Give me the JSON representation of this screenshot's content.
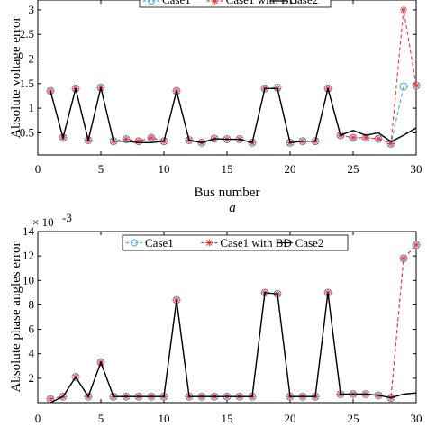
{
  "chart_data": [
    {
      "type": "line",
      "panel_label": "a",
      "title": "",
      "xlabel": "Bus number",
      "ylabel": "Absolute voltage error",
      "xlim": [
        0,
        30
      ],
      "ylim": [
        0.05,
        3.2
      ],
      "xticks": [
        "0",
        "5",
        "10",
        "15",
        "20",
        "25",
        "30"
      ],
      "yticks": [
        "0.5",
        "1",
        "1.5",
        "2",
        "2.5",
        "3"
      ],
      "legend": [
        "Case1",
        "Case1 with BD",
        "Case2"
      ],
      "legend_position": "top",
      "x": [
        1,
        2,
        3,
        4,
        5,
        6,
        7,
        8,
        9,
        10,
        11,
        12,
        13,
        14,
        15,
        16,
        17,
        18,
        19,
        20,
        21,
        22,
        23,
        24,
        25,
        26,
        27,
        28,
        29,
        30
      ],
      "series": [
        {
          "name": "Case1",
          "style": "dashed-circle",
          "color": "#4aa3df",
          "values": [
            1.35,
            0.4,
            1.4,
            0.35,
            1.42,
            0.33,
            0.37,
            0.33,
            0.4,
            0.33,
            1.35,
            0.35,
            0.3,
            0.38,
            0.37,
            0.37,
            0.3,
            1.4,
            1.42,
            0.3,
            0.33,
            0.33,
            1.4,
            0.45,
            0.4,
            0.4,
            0.38,
            0.28,
            1.44,
            1.46
          ]
        },
        {
          "name": "Case1 with BD",
          "style": "dashed-star",
          "color": "#e8383d",
          "values": [
            1.35,
            0.4,
            1.4,
            0.35,
            1.42,
            0.33,
            0.37,
            0.33,
            0.4,
            0.33,
            1.35,
            0.35,
            0.3,
            0.38,
            0.37,
            0.37,
            0.3,
            1.4,
            1.4,
            0.3,
            0.33,
            0.33,
            1.4,
            0.45,
            0.4,
            0.4,
            0.38,
            0.28,
            3.0,
            1.46
          ]
        },
        {
          "name": "Case2",
          "style": "solid",
          "color": "#000000",
          "values": [
            1.35,
            0.4,
            1.4,
            0.35,
            1.42,
            0.33,
            0.33,
            0.3,
            0.3,
            0.33,
            1.35,
            0.35,
            0.3,
            0.38,
            0.37,
            0.37,
            0.3,
            1.4,
            1.4,
            0.3,
            0.33,
            0.33,
            1.4,
            0.45,
            0.55,
            0.45,
            0.5,
            0.32,
            0.45,
            0.6
          ]
        }
      ]
    },
    {
      "type": "line",
      "title": "",
      "xlabel": "",
      "ylabel": "Absolute phase angles error",
      "y_multiplier": "× 10",
      "y_exponent": "-3",
      "xlim": [
        0,
        30
      ],
      "ylim": [
        0,
        14
      ],
      "xticks": [
        "0",
        "5",
        "10",
        "15",
        "20",
        "25",
        "30"
      ],
      "yticks": [
        "2",
        "4",
        "6",
        "8",
        "10",
        "12",
        "14"
      ],
      "legend": [
        "Case1",
        "Case1 with BD",
        "Case2"
      ],
      "legend_position": "top",
      "x": [
        1,
        2,
        3,
        4,
        5,
        6,
        7,
        8,
        9,
        10,
        11,
        12,
        13,
        14,
        15,
        16,
        17,
        18,
        19,
        20,
        21,
        22,
        23,
        24,
        25,
        26,
        27,
        28,
        29,
        30
      ],
      "series": [
        {
          "name": "Case1",
          "style": "dashed-circle",
          "color": "#4aa3df",
          "values": [
            0.3,
            0.5,
            2.1,
            0.5,
            3.3,
            0.5,
            0.5,
            0.5,
            0.5,
            0.5,
            8.4,
            0.5,
            0.5,
            0.5,
            0.5,
            0.5,
            0.5,
            9.0,
            8.9,
            0.5,
            0.5,
            0.5,
            9.0,
            0.7,
            0.7,
            0.7,
            0.6,
            0.4,
            11.8,
            12.9
          ]
        },
        {
          "name": "Case1 with BD",
          "style": "dashed-star",
          "color": "#e8383d",
          "values": [
            0.3,
            0.5,
            2.1,
            0.5,
            3.3,
            0.5,
            0.5,
            0.5,
            0.5,
            0.5,
            8.4,
            0.5,
            0.5,
            0.5,
            0.5,
            0.5,
            0.5,
            9.0,
            8.9,
            0.5,
            0.5,
            0.5,
            9.0,
            0.7,
            0.7,
            0.7,
            0.6,
            0.4,
            11.8,
            12.9
          ]
        },
        {
          "name": "Case2",
          "style": "solid",
          "color": "#000000",
          "values": [
            0.0,
            0.5,
            2.1,
            0.5,
            3.3,
            0.5,
            0.5,
            0.5,
            0.5,
            0.5,
            8.4,
            0.5,
            0.5,
            0.5,
            0.5,
            0.5,
            0.5,
            9.0,
            8.9,
            0.5,
            0.5,
            0.5,
            9.0,
            0.7,
            0.7,
            0.7,
            0.6,
            0.4,
            0.7,
            0.8
          ]
        }
      ]
    }
  ]
}
